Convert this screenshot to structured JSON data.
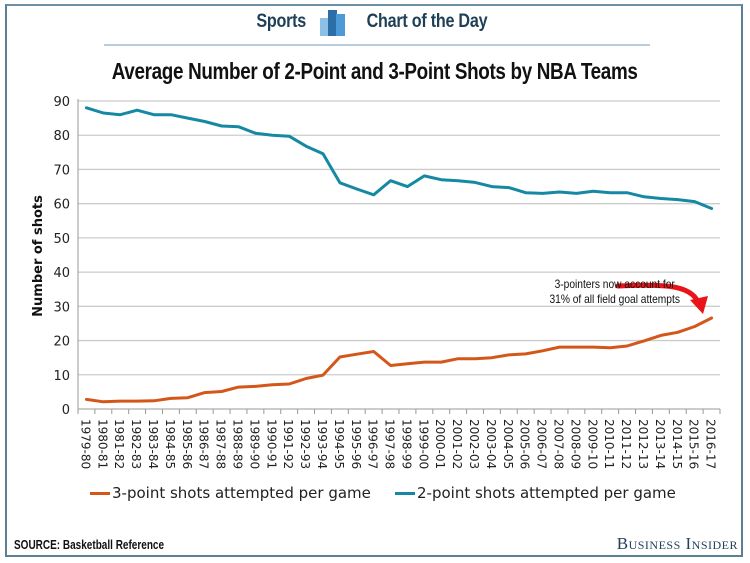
{
  "header": {
    "left_label": "Sports",
    "right_label": "Chart of the Day",
    "icon": "bar-chart-icon"
  },
  "footer": {
    "source": "SOURCE: Basketball Reference",
    "brand": "Business Insider"
  },
  "colors": {
    "three_point": "#d4571a",
    "two_point": "#1589a3",
    "grid": "#cccccc",
    "arrow": "#e8141a",
    "frame": "#5b7f95"
  },
  "chart_data": {
    "type": "line",
    "title": "Average Number of 2-Point and 3-Point Shots by NBA Teams",
    "xlabel": "",
    "ylabel": "Number of shots",
    "ylim": [
      0,
      90
    ],
    "yticks": [
      0,
      10,
      20,
      30,
      40,
      50,
      60,
      70,
      80,
      90
    ],
    "grid": true,
    "legend_position": "bottom",
    "categories": [
      "1979-80",
      "1980-81",
      "1981-82",
      "1982-83",
      "1983-84",
      "1984-85",
      "1985-86",
      "1986-87",
      "1987-88",
      "1988-89",
      "1989-90",
      "1990-91",
      "1991-92",
      "1992-93",
      "1993-94",
      "1994-95",
      "1995-96",
      "1996-97",
      "1997-98",
      "1998-99",
      "1999-00",
      "2000-01",
      "2001-02",
      "2002-03",
      "2003-04",
      "2004-05",
      "2005-06",
      "2006-07",
      "2007-08",
      "2008-09",
      "2009-10",
      "2010-11",
      "2011-12",
      "2012-13",
      "2013-14",
      "2014-15",
      "2015-16",
      "2016-17"
    ],
    "series": [
      {
        "name": "3-point shots attempted per game",
        "color_key": "three_point",
        "values": [
          2.8,
          2.1,
          2.3,
          2.3,
          2.4,
          3.1,
          3.3,
          4.8,
          5.1,
          6.4,
          6.6,
          7.1,
          7.3,
          8.9,
          9.9,
          15.2,
          16.0,
          16.8,
          12.7,
          13.2,
          13.7,
          13.7,
          14.7,
          14.7,
          15.0,
          15.8,
          16.1,
          17.0,
          18.1,
          18.1,
          18.1,
          17.9,
          18.4,
          19.9,
          21.5,
          22.4,
          24.1,
          26.6
        ]
      },
      {
        "name": "2-point shots attempted per game",
        "color_key": "two_point",
        "values": [
          88.0,
          86.5,
          86.0,
          87.3,
          86.0,
          86.0,
          85.0,
          84.0,
          82.7,
          82.5,
          80.6,
          80.0,
          79.7,
          76.8,
          74.6,
          66.1,
          64.3,
          62.6,
          66.7,
          65.0,
          68.1,
          67.0,
          66.7,
          66.2,
          65.0,
          64.7,
          63.2,
          63.0,
          63.4,
          63.0,
          63.6,
          63.2,
          63.2,
          62.0,
          61.5,
          61.2,
          60.6,
          58.6
        ]
      }
    ],
    "annotation": {
      "lines": [
        "3-pointers now account for",
        "31% of all field goal attempts"
      ],
      "points_to": "2016-17"
    }
  }
}
